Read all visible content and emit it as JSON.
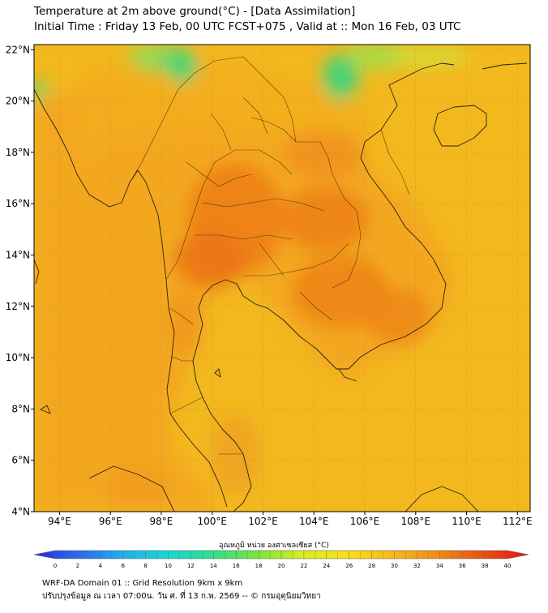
{
  "header": {
    "title_line1": "Temperature at 2m above ground(°C) - [Data Assimilation]",
    "title_line2": "Initial Time : Friday 13 Feb, 00 UTC FCST+075 , Valid at :: Mon 16 Feb, 03 UTC"
  },
  "map": {
    "lat_ticks": [
      {
        "value": 22,
        "label": "22°N"
      },
      {
        "value": 20,
        "label": "20°N"
      },
      {
        "value": 18,
        "label": "18°N"
      },
      {
        "value": 16,
        "label": "16°N"
      },
      {
        "value": 14,
        "label": "14°N"
      },
      {
        "value": 12,
        "label": "12°N"
      },
      {
        "value": 10,
        "label": "10°N"
      },
      {
        "value": 8,
        "label": "8°N"
      },
      {
        "value": 6,
        "label": "6°N"
      },
      {
        "value": 4,
        "label": "4°N"
      }
    ],
    "lon_ticks": [
      {
        "value": 94,
        "label": "94°E"
      },
      {
        "value": 96,
        "label": "96°E"
      },
      {
        "value": 98,
        "label": "98°E"
      },
      {
        "value": 100,
        "label": "100°E"
      },
      {
        "value": 102,
        "label": "102°E"
      },
      {
        "value": 104,
        "label": "104°E"
      },
      {
        "value": 106,
        "label": "106°E"
      },
      {
        "value": 108,
        "label": "108°E"
      },
      {
        "value": 110,
        "label": "110°E"
      },
      {
        "value": 112,
        "label": "112°E"
      }
    ],
    "lon_range": [
      93.0,
      112.5
    ],
    "lat_range": [
      4.0,
      22.2
    ],
    "grid": true,
    "colors": {
      "ocean_base": "#f2b81e",
      "land_warm": "#f39a1c",
      "hot": "#ee7a16",
      "cool_green": "#3fd47a",
      "outline": "#2a2010"
    }
  },
  "colorbar": {
    "label": "อุณหภูมิ หน่วย องศาเซลเซียส (°C)",
    "min": 0,
    "max": 40,
    "tick_labels": [
      "0",
      "2",
      "4",
      "6",
      "8",
      "10",
      "12",
      "14",
      "16",
      "18",
      "20",
      "22",
      "24",
      "26",
      "28",
      "30",
      "32",
      "34",
      "36",
      "38",
      "40"
    ],
    "gradient": [
      "#2a2ad8",
      "#2a6cf0",
      "#1fb0f0",
      "#18d8d0",
      "#2ee08a",
      "#7ae63a",
      "#d8ee20",
      "#f8e018",
      "#f6b818",
      "#f28a14",
      "#ec4e12",
      "#e6121a"
    ]
  },
  "footer": {
    "line1": "WRF-DA Domain 01 :: Grid Resolution 9km x 9km",
    "line2": "ปรับปรุงข้อมูล ณ เวลา 07:00น. วัน ศ. ที่ 13 ก.พ. 2569 -- © กรมอุตุนิยมวิทยา"
  }
}
